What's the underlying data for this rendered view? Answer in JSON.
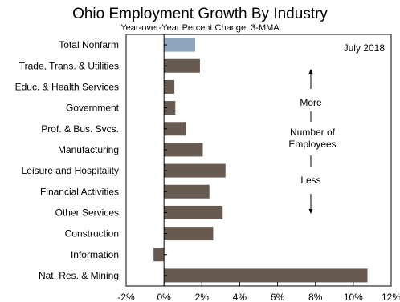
{
  "chart_data": {
    "type": "bar",
    "orientation": "horizontal",
    "title": "Ohio Employment Growth By Industry",
    "subtitle": "Year-over-Year Percent Change, 3-MMA",
    "date_label": "July 2018",
    "categories": [
      "Total Nonfarm",
      "Trade, Trans. & Utilities",
      "Educ. & Health Services",
      "Government",
      "Prof. & Bus. Svcs.",
      "Manufacturing",
      "Leisure and Hospitality",
      "Financial Activities",
      "Other Services",
      "Construction",
      "Information",
      "Nat. Res. & Mining"
    ],
    "values": [
      1.65,
      1.9,
      0.55,
      0.6,
      1.15,
      2.05,
      3.25,
      2.4,
      3.1,
      2.6,
      -0.55,
      10.75
    ],
    "xlim": [
      -2,
      12
    ],
    "xticks": [
      -2,
      0,
      2,
      4,
      6,
      8,
      10,
      12
    ],
    "tick_suffix": "%",
    "highlight_color": "#8da6bc",
    "bar_color": "#675b51",
    "legend_note": {
      "more": "More",
      "middle_line1": "Number of",
      "middle_line2": "Employees",
      "less": "Less"
    }
  }
}
